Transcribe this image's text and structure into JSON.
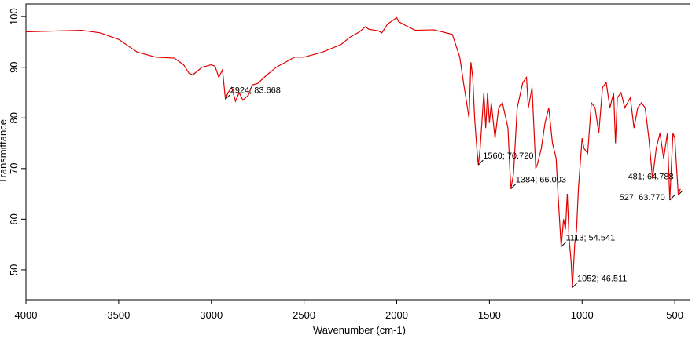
{
  "chart_data": {
    "type": "line",
    "xlabel": "Wavenumber (cm-1)",
    "ylabel": "Transmittance",
    "xlim": [
      4000,
      420
    ],
    "ylim": [
      44.1,
      102.5
    ],
    "xticks": [
      4000,
      3500,
      3000,
      2500,
      2000,
      1500,
      1000,
      500
    ],
    "yticks": [
      50,
      60,
      70,
      80,
      90,
      100
    ],
    "x": [
      4000,
      3800,
      3700,
      3600,
      3500,
      3400,
      3300,
      3200,
      3150,
      3120,
      3100,
      3050,
      3000,
      2980,
      2960,
      2940,
      2924,
      2910,
      2890,
      2870,
      2850,
      2830,
      2800,
      2780,
      2750,
      2700,
      2650,
      2600,
      2550,
      2500,
      2450,
      2400,
      2300,
      2250,
      2200,
      2170,
      2150,
      2100,
      2080,
      2050,
      2000,
      1990,
      1950,
      1900,
      1800,
      1700,
      1660,
      1640,
      1610,
      1600,
      1590,
      1580,
      1570,
      1560,
      1550,
      1530,
      1520,
      1510,
      1500,
      1490,
      1470,
      1450,
      1430,
      1400,
      1390,
      1384,
      1370,
      1350,
      1320,
      1300,
      1290,
      1270,
      1260,
      1250,
      1240,
      1220,
      1200,
      1180,
      1160,
      1140,
      1130,
      1113,
      1100,
      1090,
      1080,
      1070,
      1060,
      1052,
      1040,
      1030,
      1020,
      1000,
      990,
      970,
      950,
      930,
      910,
      890,
      870,
      850,
      830,
      820,
      810,
      790,
      770,
      740,
      720,
      700,
      680,
      660,
      640,
      620,
      600,
      580,
      560,
      540,
      527,
      510,
      500,
      490,
      481,
      470
    ],
    "series": [
      {
        "name": "Transmittance",
        "color": "#e00000",
        "values": [
          97,
          97.2,
          97.3,
          96.8,
          95.5,
          93,
          92,
          91.8,
          90.5,
          88.8,
          88.5,
          90,
          90.5,
          90.2,
          88,
          89.5,
          83.668,
          85,
          86,
          83.3,
          85,
          83.5,
          84.5,
          86.5,
          86.8,
          88.5,
          90,
          91,
          92,
          92,
          92.5,
          93,
          94.5,
          96,
          97,
          98,
          97.5,
          97.2,
          96.8,
          98.5,
          99.8,
          99,
          98.2,
          97.3,
          97.4,
          96.5,
          92,
          87,
          80,
          91,
          88,
          80,
          75,
          70.72,
          74,
          85,
          78,
          85,
          79,
          83,
          76,
          82,
          83,
          78,
          70,
          66.003,
          69,
          82,
          87,
          88,
          82,
          86,
          78,
          70,
          71,
          74,
          79,
          82,
          75,
          72,
          65,
          54.541,
          60,
          58,
          65,
          56,
          52,
          46.511,
          55,
          58,
          66,
          76,
          74,
          73,
          83,
          82,
          77,
          86,
          87,
          82,
          85,
          75,
          84,
          85,
          82,
          84,
          78,
          82,
          83,
          82,
          76,
          68,
          74,
          77,
          72,
          77,
          63.77,
          77,
          76,
          70,
          64.788,
          66
        ]
      }
    ],
    "annotations": [
      {
        "text": "2924; 83.668",
        "x": 2924,
        "y": 83.668
      },
      {
        "text": "1560; 70.720",
        "x": 1560,
        "y": 70.72
      },
      {
        "text": "1384; 66.003",
        "x": 1384,
        "y": 66.003
      },
      {
        "text": "1113; 54.541",
        "x": 1113,
        "y": 54.541
      },
      {
        "text": "1052; 46.511",
        "x": 1052,
        "y": 46.511
      },
      {
        "text": "481; 64.788",
        "x": 481,
        "y": 64.788
      },
      {
        "text": "527; 63.770",
        "x": 527,
        "y": 63.77
      }
    ]
  }
}
